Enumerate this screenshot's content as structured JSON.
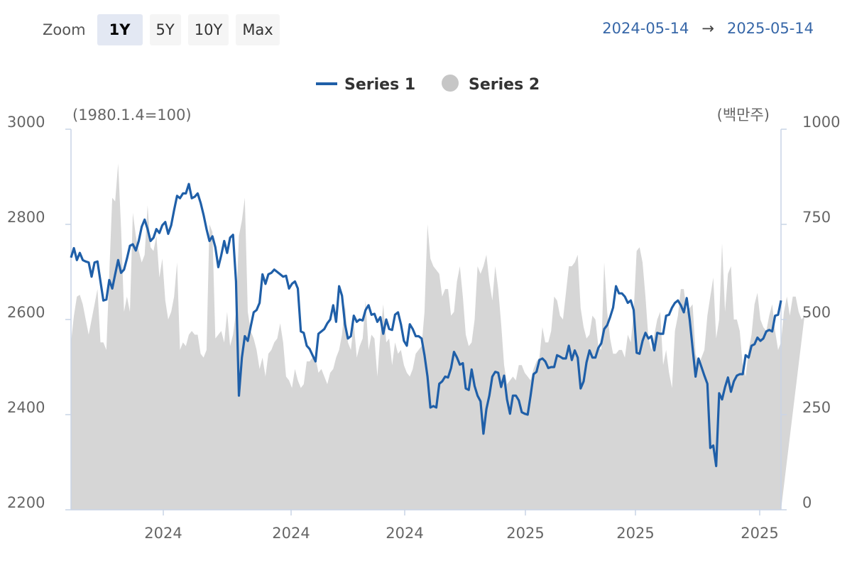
{
  "toolbar": {
    "zoom_label": "Zoom",
    "buttons": [
      {
        "label": "1Y",
        "active": true
      },
      {
        "label": "5Y",
        "active": false
      },
      {
        "label": "10Y",
        "active": false
      },
      {
        "label": "Max",
        "active": false
      }
    ]
  },
  "range": {
    "from": "2024-05-14",
    "arrow": "→",
    "to": "2025-05-14"
  },
  "colors": {
    "series1": "#1f5fa8",
    "series2": "#d6d6d6",
    "axis": "#c8d4e6"
  },
  "chart_data": {
    "type": "line",
    "left_axis_unit": "(1980.1.4=100)",
    "right_axis_unit": "(백만주)",
    "yticks_left": [
      "3000",
      "2800",
      "2600",
      "2400",
      "2200"
    ],
    "yticks_right": [
      "1000",
      "750",
      "500",
      "250",
      "0"
    ],
    "ylim_left": [
      2200,
      3000
    ],
    "ylim_right": [
      0,
      1000
    ],
    "xtick_labels": [
      "2024",
      "2024",
      "2024",
      "2025",
      "2025",
      "2025"
    ],
    "xtick_positions": [
      0.13,
      0.31,
      0.47,
      0.64,
      0.795,
      0.97
    ],
    "legend_position": "top-center",
    "series": [
      {
        "name": "Series 1",
        "axis": "left",
        "kind": "line",
        "values": [
          2730,
          2750,
          2725,
          2740,
          2725,
          2722,
          2720,
          2690,
          2720,
          2722,
          2680,
          2640,
          2642,
          2683,
          2665,
          2695,
          2725,
          2698,
          2705,
          2728,
          2755,
          2758,
          2745,
          2765,
          2795,
          2810,
          2790,
          2765,
          2772,
          2790,
          2782,
          2798,
          2805,
          2780,
          2798,
          2830,
          2860,
          2855,
          2865,
          2865,
          2885,
          2855,
          2858,
          2865,
          2845,
          2820,
          2790,
          2765,
          2775,
          2752,
          2710,
          2735,
          2765,
          2740,
          2772,
          2778,
          2680,
          2440,
          2520,
          2565,
          2555,
          2585,
          2615,
          2620,
          2635,
          2695,
          2675,
          2695,
          2698,
          2705,
          2700,
          2695,
          2690,
          2692,
          2665,
          2675,
          2680,
          2665,
          2575,
          2572,
          2545,
          2538,
          2525,
          2512,
          2570,
          2575,
          2580,
          2592,
          2600,
          2630,
          2595,
          2670,
          2650,
          2590,
          2560,
          2565,
          2608,
          2595,
          2600,
          2598,
          2620,
          2630,
          2610,
          2612,
          2595,
          2605,
          2570,
          2600,
          2580,
          2578,
          2610,
          2615,
          2590,
          2555,
          2545,
          2590,
          2580,
          2565,
          2565,
          2560,
          2525,
          2480,
          2415,
          2418,
          2415,
          2465,
          2470,
          2480,
          2478,
          2498,
          2532,
          2520,
          2505,
          2508,
          2455,
          2452,
          2495,
          2460,
          2440,
          2428,
          2360,
          2412,
          2440,
          2480,
          2490,
          2488,
          2458,
          2482,
          2432,
          2402,
          2440,
          2440,
          2430,
          2405,
          2402,
          2400,
          2440,
          2485,
          2490,
          2515,
          2518,
          2512,
          2498,
          2500,
          2500,
          2525,
          2522,
          2518,
          2518,
          2545,
          2515,
          2535,
          2520,
          2455,
          2470,
          2510,
          2535,
          2520,
          2520,
          2540,
          2550,
          2580,
          2588,
          2605,
          2625,
          2670,
          2655,
          2655,
          2648,
          2635,
          2640,
          2620,
          2530,
          2528,
          2555,
          2572,
          2560,
          2565,
          2535,
          2572,
          2570,
          2570,
          2608,
          2610,
          2625,
          2635,
          2640,
          2630,
          2615,
          2645,
          2600,
          2540,
          2480,
          2518,
          2500,
          2482,
          2465,
          2330,
          2335,
          2292,
          2445,
          2432,
          2458,
          2478,
          2448,
          2470,
          2482,
          2485,
          2485,
          2525,
          2520,
          2545,
          2548,
          2562,
          2555,
          2560,
          2575,
          2578,
          2575,
          2608,
          2610,
          2640
        ]
      },
      {
        "name": "Series 2",
        "axis": "right",
        "kind": "area",
        "values": [
          440,
          510,
          560,
          565,
          540,
          500,
          460,
          500,
          540,
          580,
          440,
          440,
          420,
          620,
          820,
          810,
          910,
          740,
          520,
          560,
          520,
          780,
          720,
          680,
          650,
          670,
          800,
          690,
          680,
          720,
          610,
          660,
          550,
          500,
          520,
          560,
          650,
          420,
          440,
          430,
          460,
          470,
          460,
          460,
          410,
          400,
          420,
          750,
          730,
          450,
          460,
          470,
          440,
          520,
          430,
          460,
          520,
          720,
          760,
          820,
          520,
          470,
          450,
          420,
          370,
          400,
          350,
          410,
          420,
          440,
          450,
          490,
          440,
          350,
          340,
          320,
          370,
          340,
          320,
          330,
          390,
          390,
          400,
          400,
          360,
          370,
          350,
          330,
          360,
          370,
          400,
          420,
          460,
          540,
          440,
          420,
          490,
          400,
          430,
          450,
          550,
          420,
          460,
          450,
          350,
          460,
          540,
          440,
          450,
          380,
          440,
          410,
          420,
          380,
          360,
          350,
          370,
          410,
          420,
          430,
          520,
          750,
          660,
          640,
          630,
          620,
          560,
          580,
          580,
          510,
          520,
          600,
          640,
          560,
          460,
          430,
          440,
          500,
          640,
          620,
          640,
          670,
          600,
          550,
          640,
          580,
          490,
          380,
          330,
          340,
          350,
          340,
          380,
          380,
          360,
          350,
          340,
          370,
          390,
          400,
          480,
          440,
          440,
          470,
          560,
          550,
          510,
          500,
          570,
          640,
          640,
          650,
          670,
          530,
          480,
          450,
          460,
          510,
          500,
          430,
          420,
          650,
          520,
          450,
          410,
          410,
          420,
          420,
          400,
          460,
          440,
          520,
          680,
          690,
          650,
          560,
          450,
          420,
          460,
          500,
          520,
          380,
          420,
          360,
          320,
          470,
          510,
          580,
          580,
          520,
          530,
          540,
          410,
          380,
          400,
          420,
          510,
          560,
          610,
          450,
          500,
          700,
          520,
          620,
          640,
          500,
          500,
          470,
          380,
          350,
          420,
          460,
          540,
          570,
          500,
          480,
          470,
          510,
          540,
          470,
          420,
          440,
          520,
          560,
          510,
          560,
          560,
          520,
          500,
          510
        ]
      }
    ]
  }
}
